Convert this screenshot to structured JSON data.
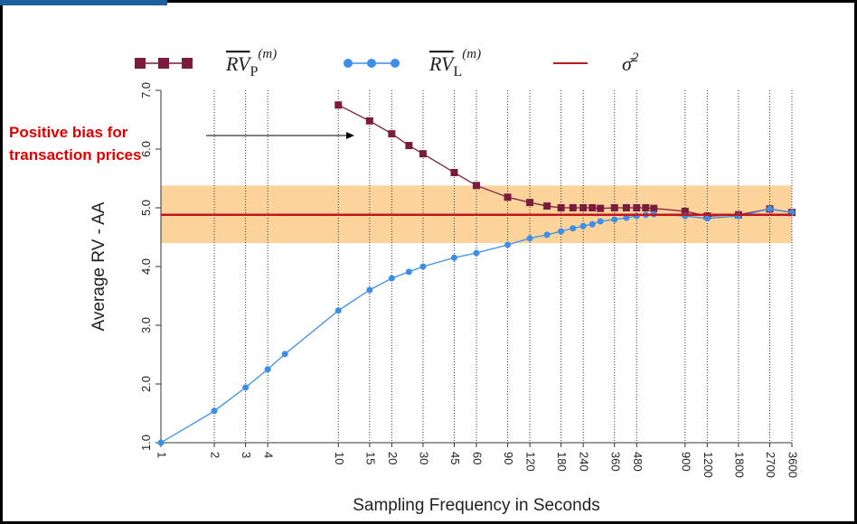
{
  "chart_data": {
    "type": "line",
    "y_label": "Average RV - AA",
    "x_label": "Sampling Frequency in Seconds",
    "annotation": [
      "Positive bias for",
      "transaction prices"
    ],
    "log_x": true,
    "grid": true,
    "xlim": [
      1,
      3600
    ],
    "ylim": [
      1,
      7
    ],
    "xticks": [
      1,
      2,
      3,
      4,
      10,
      15,
      20,
      30,
      45,
      60,
      90,
      120,
      180,
      240,
      360,
      480,
      900,
      1200,
      1800,
      2700,
      3600
    ],
    "yticks": [
      {
        "value": 1,
        "label": "1.0"
      },
      {
        "value": 2,
        "label": "2.0"
      },
      {
        "value": 3,
        "label": "3.0"
      },
      {
        "value": 4,
        "label": "4.0"
      },
      {
        "value": 5,
        "label": "5.0"
      },
      {
        "value": 6,
        "label": "6.0"
      },
      {
        "value": 7,
        "label": "7.0"
      }
    ],
    "band": [
      4.4,
      5.38
    ],
    "band_color": "#fbd39b",
    "series": [
      {
        "name": "RV",
        "subscript": "P",
        "superscript": "(m)",
        "color": "#7b1c3e",
        "marker": "square",
        "x": [
          10,
          15,
          20,
          25,
          30,
          45,
          60,
          90,
          120,
          150,
          180,
          210,
          240,
          270,
          300,
          360,
          420,
          480,
          540,
          600,
          900,
          1200,
          1800,
          2700,
          3600
        ],
        "values": [
          6.75,
          6.48,
          6.26,
          6.06,
          5.92,
          5.6,
          5.38,
          5.18,
          5.09,
          5.03,
          5.0,
          5.0,
          5.0,
          5.0,
          4.99,
          5.0,
          5.0,
          5.0,
          5.0,
          4.99,
          4.94,
          4.86,
          4.88,
          4.98,
          4.92
        ]
      },
      {
        "name": "RV",
        "subscript": "L",
        "superscript": "(m)",
        "color": "#3d8ee8",
        "marker": "circle",
        "x": [
          1,
          2,
          3,
          4,
          5,
          10,
          15,
          20,
          25,
          30,
          45,
          60,
          90,
          120,
          150,
          180,
          210,
          240,
          270,
          300,
          360,
          420,
          480,
          540,
          600,
          900,
          1200,
          1800,
          2700,
          3600
        ],
        "values": [
          1.0,
          1.54,
          1.94,
          2.25,
          2.51,
          3.25,
          3.6,
          3.8,
          3.91,
          4.0,
          4.15,
          4.23,
          4.37,
          4.48,
          4.54,
          4.6,
          4.65,
          4.69,
          4.72,
          4.77,
          4.8,
          4.83,
          4.86,
          4.88,
          4.89,
          4.86,
          4.82,
          4.86,
          4.98,
          4.92
        ]
      },
      {
        "name": "σ̄",
        "superscript": "2",
        "color": "#c0161e",
        "marker": "hline",
        "values": [
          4.88
        ]
      }
    ]
  }
}
